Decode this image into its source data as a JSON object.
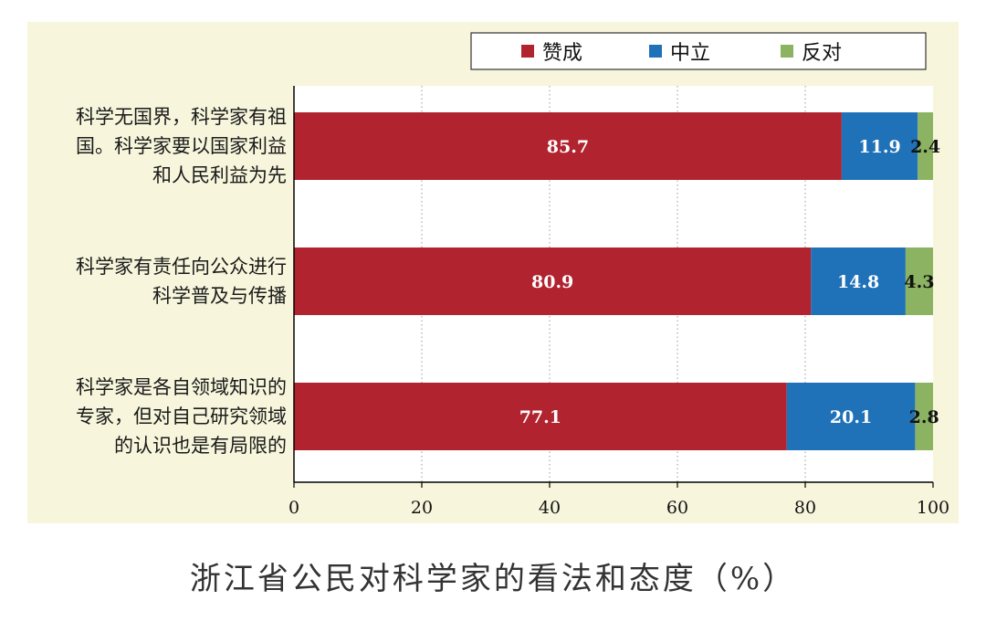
{
  "chart_data": {
    "type": "bar",
    "orientation": "horizontal",
    "stacked": true,
    "title": "浙江省公民对科学家的看法和态度（%）",
    "categories": [
      [
        "科学无国界，科学家有祖",
        "国。科学家要以国家利益",
        "和人民利益为先"
      ],
      [
        "科学家有责任向公众进行",
        "科学普及与传播"
      ],
      [
        "科学家是各自领域知识的",
        "专家，但对自己研究领域",
        "的认识也是有局限的"
      ]
    ],
    "series": [
      {
        "name": "赞成",
        "color": "#b0232f",
        "values": [
          85.7,
          80.9,
          77.1
        ],
        "labels": [
          "85.7",
          "80.9",
          "77.1"
        ]
      },
      {
        "name": "中立",
        "color": "#1f71b8",
        "values": [
          11.9,
          14.8,
          20.1
        ],
        "labels": [
          "11.9",
          "14.8",
          "20.1"
        ]
      },
      {
        "name": "反对",
        "color": "#8bb361",
        "values": [
          2.4,
          4.3,
          2.8
        ],
        "labels": [
          "2.4",
          "4.3",
          "2.8"
        ]
      }
    ],
    "x_ticks": [
      "0",
      "20",
      "40",
      "60",
      "80",
      "100"
    ],
    "xlim": [
      0,
      100
    ],
    "grid": "vertical-dotted",
    "legend_position": "top-right",
    "background": "#f7f6dc"
  }
}
